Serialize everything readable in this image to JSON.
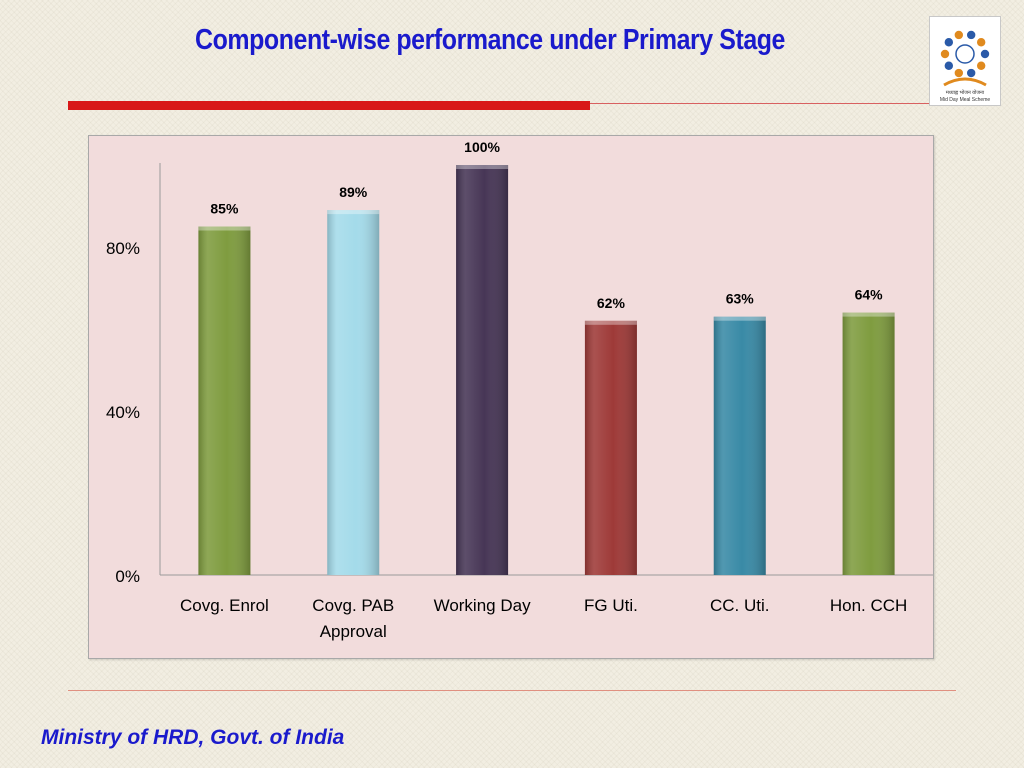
{
  "slide": {
    "title": "Component-wise performance under Primary Stage",
    "footer": "Ministry of HRD, Govt. of India"
  },
  "logo": {
    "icon": "mid-day-meal-logo",
    "caption_hindi": "मध्याह्न भोजन योजना",
    "caption": "Mid Day Meal Scheme"
  },
  "colors": {
    "title": "#1a1acc",
    "accent_rule": "#d81818",
    "plot_background": "#f2dcdc"
  },
  "chart_data": {
    "type": "bar",
    "title": "",
    "xlabel": "",
    "ylabel": "",
    "ylim": [
      0,
      100
    ],
    "yticks": [
      {
        "value": 0,
        "label": "0%"
      },
      {
        "value": 40,
        "label": "40%"
      },
      {
        "value": 80,
        "label": "80%"
      }
    ],
    "grid": false,
    "legend": "none",
    "categories": [
      [
        "Covg. Enrol"
      ],
      [
        "Covg. PAB",
        "Approval"
      ],
      [
        "Working Day"
      ],
      [
        "FG Uti."
      ],
      [
        "CC. Uti."
      ],
      [
        "Hon. CCH"
      ]
    ],
    "values": [
      85,
      89,
      100,
      62,
      63,
      64
    ],
    "data_labels": [
      "85%",
      "89%",
      "100%",
      "62%",
      "63%",
      "64%"
    ],
    "bar_colors": [
      "#7f9c3f",
      "#a4dbea",
      "#473656",
      "#9e3a38",
      "#398aa6",
      "#7f9c3f"
    ]
  }
}
